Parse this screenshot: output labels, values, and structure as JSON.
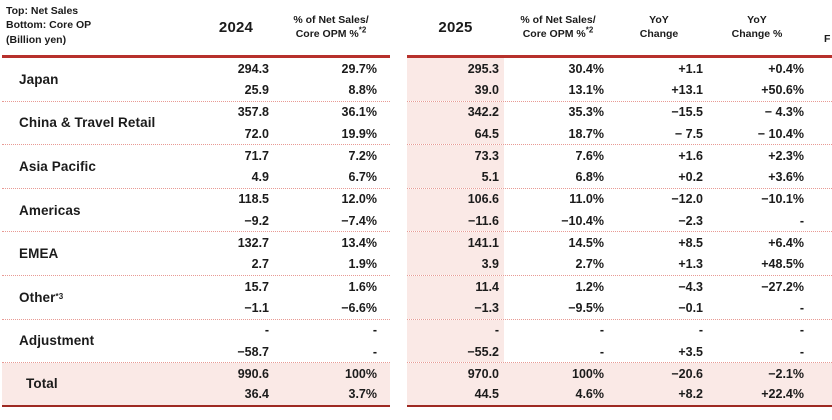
{
  "table": {
    "header": {
      "row_label_lines": [
        "Top: Net Sales",
        "Bottom: Core OP",
        "(Billion yen)"
      ],
      "col_2024": "2024",
      "col_2025": "2025",
      "pct_line1": "% of Net Sales/",
      "pct_line2_base": "Core OPM %",
      "pct_line2_sup": "*2",
      "yoy_line1": "YoY",
      "yoy_line2": "Change",
      "yoypct_line1": "YoY",
      "yoypct_line2": "Change %",
      "next_col_partial": "F"
    },
    "rows": [
      {
        "region": "Japan",
        "region_sup": "",
        "total": false,
        "fy2024": [
          "294.3",
          "25.9"
        ],
        "pct2024": [
          "29.7%",
          "8.8%"
        ],
        "fy2025": [
          "295.3",
          "39.0"
        ],
        "pct2025": [
          "30.4%",
          "13.1%"
        ],
        "yoy": [
          "+1.1",
          "+13.1"
        ],
        "yoypct": [
          "+0.4%",
          "+50.6%"
        ]
      },
      {
        "region": "China & Travel Retail",
        "region_sup": "",
        "total": false,
        "fy2024": [
          "357.8",
          "72.0"
        ],
        "pct2024": [
          "36.1%",
          "19.9%"
        ],
        "fy2025": [
          "342.2",
          "64.5"
        ],
        "pct2025": [
          "35.3%",
          "18.7%"
        ],
        "yoy": [
          "−15.5",
          "− 7.5"
        ],
        "yoypct": [
          "− 4.3%",
          "− 10.4%"
        ]
      },
      {
        "region": "Asia Pacific",
        "region_sup": "",
        "total": false,
        "fy2024": [
          "71.7",
          "4.9"
        ],
        "pct2024": [
          "7.2%",
          "6.7%"
        ],
        "fy2025": [
          "73.3",
          "5.1"
        ],
        "pct2025": [
          "7.6%",
          "6.8%"
        ],
        "yoy": [
          "+1.6",
          "+0.2"
        ],
        "yoypct": [
          "+2.3%",
          "+3.6%"
        ]
      },
      {
        "region": "Americas",
        "region_sup": "",
        "total": false,
        "fy2024": [
          "118.5",
          "−9.2"
        ],
        "pct2024": [
          "12.0%",
          "−7.4%"
        ],
        "fy2025": [
          "106.6",
          "−11.6"
        ],
        "pct2025": [
          "11.0%",
          "−10.4%"
        ],
        "yoy": [
          "−12.0",
          "−2.3"
        ],
        "yoypct": [
          "−10.1%",
          "-"
        ]
      },
      {
        "region": "EMEA",
        "region_sup": "",
        "total": false,
        "fy2024": [
          "132.7",
          "2.7"
        ],
        "pct2024": [
          "13.4%",
          "1.9%"
        ],
        "fy2025": [
          "141.1",
          "3.9"
        ],
        "pct2025": [
          "14.5%",
          "2.7%"
        ],
        "yoy": [
          "+8.5",
          "+1.3"
        ],
        "yoypct": [
          "+6.4%",
          "+48.5%"
        ]
      },
      {
        "region": "Other",
        "region_sup": "*3",
        "total": false,
        "fy2024": [
          "15.7",
          "−1.1"
        ],
        "pct2024": [
          "1.6%",
          "−6.6%"
        ],
        "fy2025": [
          "11.4",
          "−1.3"
        ],
        "pct2025": [
          "1.2%",
          "−9.5%"
        ],
        "yoy": [
          "−4.3",
          "−0.1"
        ],
        "yoypct": [
          "−27.2%",
          "-"
        ]
      },
      {
        "region": "Adjustment",
        "region_sup": "",
        "total": false,
        "fy2024": [
          "-",
          "−58.7"
        ],
        "pct2024": [
          "-",
          "-"
        ],
        "fy2025": [
          "-",
          "−55.2"
        ],
        "pct2025": [
          "-",
          "-"
        ],
        "yoy": [
          "-",
          "+3.5"
        ],
        "yoypct": [
          "-",
          "-"
        ]
      },
      {
        "region": "Total",
        "region_sup": "",
        "total": true,
        "fy2024": [
          "990.6",
          "36.4"
        ],
        "pct2024": [
          "100%",
          "3.7%"
        ],
        "fy2025": [
          "970.0",
          "44.5"
        ],
        "pct2025": [
          "100%",
          "4.6%"
        ],
        "yoy": [
          "−20.6",
          "+8.2"
        ],
        "yoypct": [
          "−2.1%",
          "+22.4%"
        ]
      }
    ]
  },
  "colors": {
    "text": "#1b1b1b",
    "header_rule_red": "#b7312c",
    "bottom_rule_red": "#9e2a23",
    "dotted_separator": "#e89a94",
    "highlight_pink": "#fae9e6"
  }
}
